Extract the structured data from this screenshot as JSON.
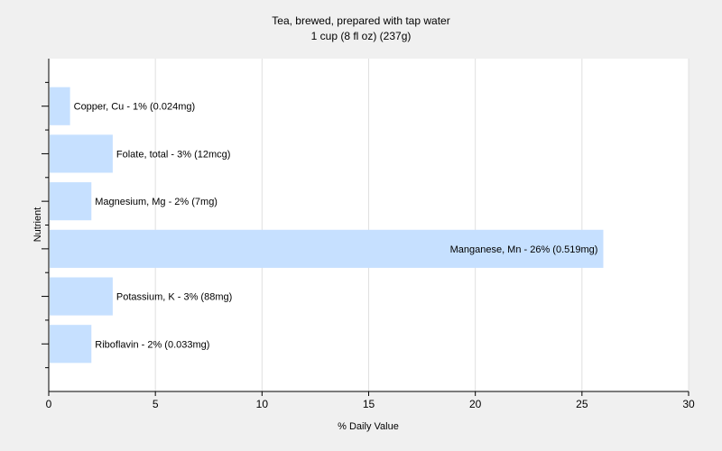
{
  "chart_data": {
    "type": "bar",
    "orientation": "horizontal",
    "title": "Tea, brewed, prepared with tap water",
    "subtitle": "1 cup (8 fl oz) (237g)",
    "xlabel": "% Daily Value",
    "ylabel": "Nutrient",
    "xlim": [
      0,
      30
    ],
    "xticks": [
      "0",
      "5",
      "10",
      "15",
      "20",
      "25",
      "30"
    ],
    "grid": true,
    "categories": [
      "Copper, Cu",
      "Folate, total",
      "Magnesium, Mg",
      "Manganese, Mn",
      "Potassium, K",
      "Riboflavin"
    ],
    "values": [
      1,
      3,
      2,
      26,
      3,
      2
    ],
    "labels": [
      "Copper, Cu - 1% (0.024mg)",
      "Folate, total - 3% (12mcg)",
      "Magnesium, Mg - 2% (7mg)",
      "Manganese, Mn - 26% (0.519mg)",
      "Potassium, K - 3% (88mg)",
      "Riboflavin - 2% (0.033mg)"
    ],
    "bar_color": "#c6e0ff",
    "grid_color": "#e0e0e0",
    "plot_background": "#ffffff"
  }
}
